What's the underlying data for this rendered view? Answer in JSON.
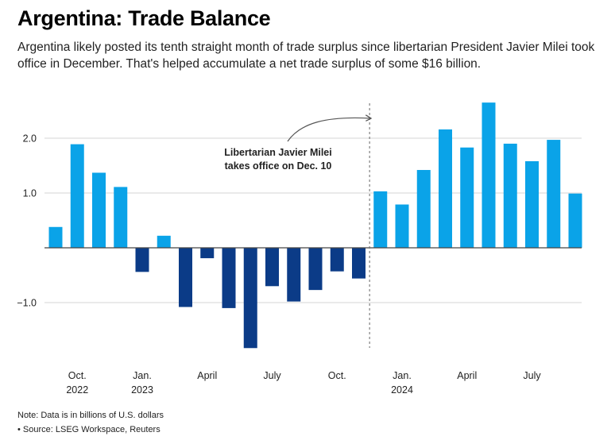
{
  "title": "Argentina: Trade Balance",
  "subtitle": "Argentina likely posted its tenth straight month of trade surplus since libertarian President Javier Milei took office in December. That's helped accumulate a net trade surplus of some $16 billion.",
  "note": "Note: Data is in billions of U.S. dollars",
  "source": "• Source: LSEG Workspace, Reuters",
  "colors": {
    "surplus": "#0aa3e8",
    "deficit": "#0b3b87",
    "grid": "#d6d6d6",
    "zero_line": "#444444",
    "annotation": "#555555"
  },
  "chart_data": {
    "type": "bar",
    "title": "Argentina: Trade Balance",
    "xlabel": "",
    "ylabel": "",
    "ylim": [
      -1.85,
      2.65
    ],
    "yticks": [
      {
        "value": 2.0,
        "label": "2.0"
      },
      {
        "value": 1.0,
        "label": "1.0"
      },
      {
        "value": -1.0,
        "label": "−1.0"
      }
    ],
    "categories": [
      "2022-09",
      "2022-10",
      "2022-11",
      "2022-12",
      "2023-01",
      "2023-02",
      "2023-03",
      "2023-04",
      "2023-05",
      "2023-06",
      "2023-07",
      "2023-08",
      "2023-09",
      "2023-10",
      "2023-11",
      "2023-12",
      "2024-01",
      "2024-02",
      "2024-03",
      "2024-04",
      "2024-05",
      "2024-06",
      "2024-07",
      "2024-08",
      "2024-09"
    ],
    "values": [
      0.38,
      1.89,
      1.37,
      1.11,
      -0.44,
      0.22,
      -1.08,
      -0.19,
      -1.1,
      -1.83,
      -0.7,
      -0.98,
      -0.77,
      -0.43,
      -0.56,
      1.03,
      0.79,
      1.42,
      2.16,
      1.83,
      2.65,
      1.9,
      1.58,
      1.97,
      0.99
    ],
    "xtick_labels": [
      {
        "index": 1,
        "line1": "Oct.",
        "line2": "2022"
      },
      {
        "index": 4,
        "line1": "Jan.",
        "line2": "2023"
      },
      {
        "index": 7,
        "line1": "April",
        "line2": ""
      },
      {
        "index": 10,
        "line1": "July",
        "line2": ""
      },
      {
        "index": 13,
        "line1": "Oct.",
        "line2": ""
      },
      {
        "index": 16,
        "line1": "Jan.",
        "line2": "2024"
      },
      {
        "index": 19,
        "line1": "April",
        "line2": ""
      },
      {
        "index": 22,
        "line1": "July",
        "line2": ""
      }
    ],
    "annotation": {
      "lines": [
        "Libertarian Javier Milei",
        "takes office on Dec. 10"
      ],
      "marker_index": 15
    },
    "grid": true,
    "legend": "none"
  }
}
